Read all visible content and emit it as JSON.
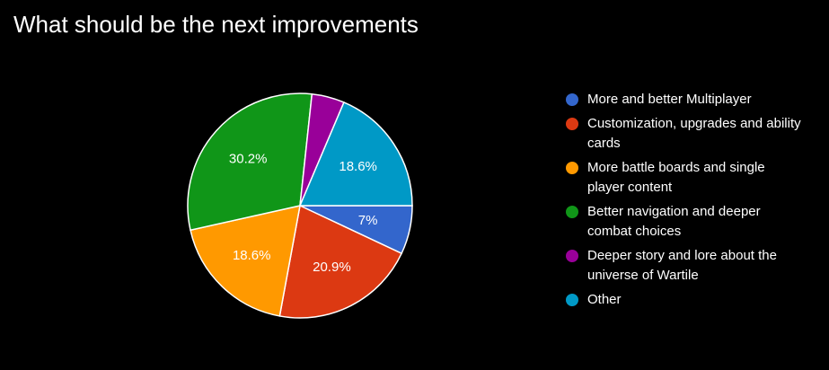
{
  "chart_data": {
    "type": "pie",
    "title": "What should be the next improvements",
    "categories": [
      "More and better Multiplayer",
      "Customization, upgrades and ability cards",
      "More battle boards and single player content",
      "Better navigation and deeper combat choices",
      "Deeper story and lore about the universe of Wartile",
      "Other"
    ],
    "values": [
      7,
      20.9,
      18.6,
      30.2,
      4.7,
      18.6
    ],
    "value_labels": [
      "7%",
      "20.9%",
      "18.6%",
      "30.2%",
      null,
      "18.6%"
    ],
    "colors": [
      "#3366cc",
      "#dc3912",
      "#ff9900",
      "#109618",
      "#990099",
      "#0099c6"
    ],
    "legend": "right"
  }
}
